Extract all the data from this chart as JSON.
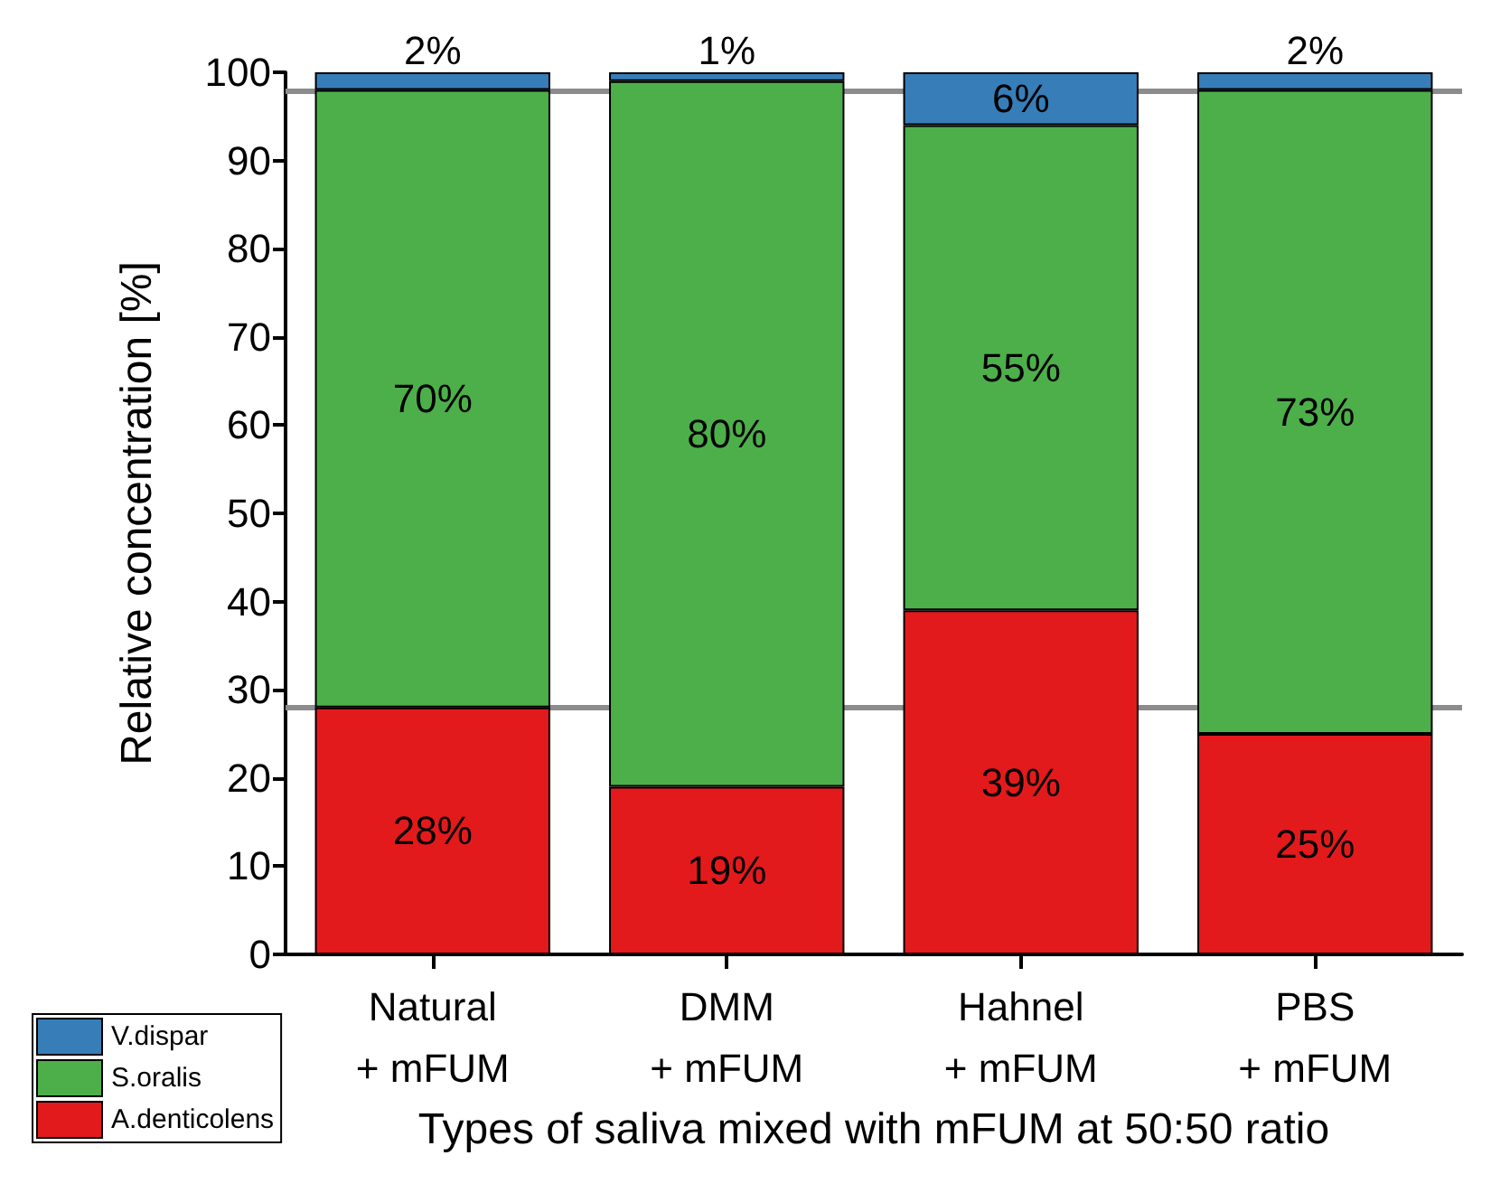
{
  "chart_data": {
    "type": "bar",
    "stacked": true,
    "xlabel": "Types of saliva mixed with mFUM at 50:50 ratio",
    "ylabel": "Relative concentration [%]",
    "categories": [
      "Natural\n+ mFUM",
      "DMM\n+ mFUM",
      "Hahnel\n+ mFUM",
      "PBS\n+ mFUM"
    ],
    "series": [
      {
        "name": "A.denticolens",
        "color": "#e31a1c",
        "values": [
          28,
          19,
          39,
          25
        ],
        "value_labels": [
          "28%",
          "19%",
          "39%",
          "25%"
        ]
      },
      {
        "name": "S.oralis",
        "color": "#4daf4a",
        "values": [
          70,
          80,
          55,
          73
        ],
        "value_labels": [
          "70%",
          "80%",
          "55%",
          "73%"
        ]
      },
      {
        "name": "V.dispar",
        "color": "#377eb8",
        "values": [
          2,
          1,
          6,
          2
        ],
        "value_labels": [
          "2%",
          "1%",
          "6%",
          "2%"
        ]
      }
    ],
    "ylim": [
      0,
      100
    ],
    "yticks": [
      0,
      10,
      20,
      30,
      40,
      50,
      60,
      70,
      80,
      90,
      100
    ],
    "ref_lines": [
      {
        "axis": "y",
        "value": 98,
        "color": "#8c8c8c"
      },
      {
        "axis": "y",
        "value": 28,
        "color": "#8c8c8c"
      }
    ],
    "grid": false,
    "legend": "bottom left"
  }
}
